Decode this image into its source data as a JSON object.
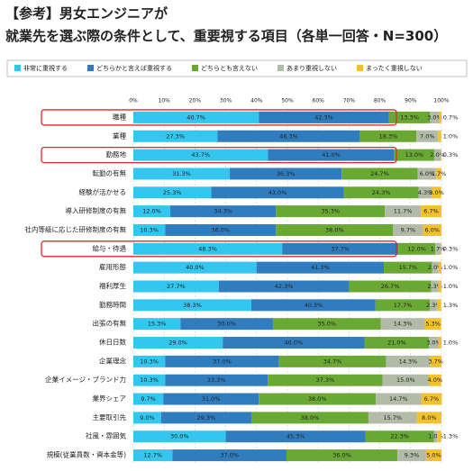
{
  "chart_data": {
    "type": "stacked-bar-horizontal",
    "title": [
      "【参考】男女エンジニアが",
      "就業先を選ぶ際の条件として、重要視する項目（各単一回答・N=300）"
    ],
    "categories": [
      "職種",
      "業種",
      "勤務地",
      "転勤の有無",
      "経験が活かせる",
      "導入研修制度の有無",
      "社内等級に応じた研修制度の有無",
      "給与・待遇",
      "雇用形態",
      "福利厚生",
      "勤務時間",
      "出張の有無",
      "休日日数",
      "企業理念",
      "企業イメージ・ブランド力",
      "業界シェア",
      "主要取引先",
      "社風・雰囲気",
      "規模(従業員数・資本金等)"
    ],
    "series": [
      {
        "name": "非常に重視する",
        "color": "#33c6ee",
        "values": [
          40.7,
          27.3,
          43.7,
          31.3,
          25.3,
          12.0,
          10.3,
          48.3,
          40.0,
          27.7,
          38.3,
          15.3,
          29.0,
          10.3,
          10.3,
          9.7,
          9.0,
          30.0,
          12.7
        ],
        "value_labels": [
          "40.7%",
          "27.3%",
          "43.7%",
          "31.3%",
          "25.3%",
          "12.0%",
          "10.3%",
          "48.3%",
          "40.0%",
          "27.7%",
          "38.3%",
          "15.3%",
          "29.0%",
          "10.3%",
          "10.3%",
          "9.7%",
          "9.0%",
          "30.0%",
          "12.7%"
        ]
      },
      {
        "name": "どちらかと言えば重視する",
        "color": "#2f7dbf",
        "values": [
          42.3,
          46.3,
          41.0,
          36.3,
          43.0,
          34.3,
          36.0,
          37.7,
          41.3,
          42.3,
          40.3,
          30.0,
          46.0,
          37.0,
          33.3,
          31.0,
          29.3,
          45.3,
          37.0
        ],
        "value_labels": [
          "42.3%",
          "46.3%",
          "41.0%",
          "36.3%",
          "43.0%",
          "34.3%",
          "36.0%",
          "37.7%",
          "41.3%",
          "42.3%",
          "40.3%",
          "30.0%",
          "46.0%",
          "37.0%",
          "33.3%",
          "31.0%",
          "29.3%",
          "45.3%",
          "37.0%"
        ]
      },
      {
        "name": "どちらとも言えない",
        "color": "#6aa834",
        "values": [
          13.3,
          18.3,
          13.0,
          24.7,
          24.3,
          35.3,
          38.0,
          12.0,
          15.7,
          26.7,
          17.7,
          35.0,
          21.0,
          34.7,
          37.3,
          38.0,
          38.0,
          22.3,
          36.0
        ],
        "value_labels": [
          "13.3%",
          "18.3%",
          "13.0%",
          "24.7%",
          "24.3%",
          "35.3%",
          "38.0%",
          "12.0%",
          "15.7%",
          "26.7%",
          "17.7%",
          "35.0%",
          "21.0%",
          "34.7%",
          "37.3%",
          "38.0%",
          "38.0%",
          "22.3%",
          "36.0%"
        ]
      },
      {
        "name": "あまり重視しない",
        "color": "#b2bba8",
        "values": [
          3.0,
          7.0,
          2.0,
          6.0,
          4.3,
          11.7,
          9.7,
          1.7,
          2.0,
          2.3,
          2.3,
          14.3,
          3.0,
          14.3,
          15.0,
          14.7,
          15.7,
          1.0,
          9.3
        ],
        "value_labels": [
          "3.0%",
          "7.0%",
          "2.0%",
          "6.0%",
          "4.3%",
          "11.7%",
          "9.7%",
          "1.7%",
          "2.0%",
          "2.3%",
          "2.3%",
          "14.3%",
          "3.0%",
          "14.3%",
          "15.0%",
          "14.7%",
          "15.7%",
          "1.0%",
          "9.3%"
        ]
      },
      {
        "name": "まったく重視しない",
        "color": "#f2c12e",
        "values": [
          0.7,
          1.0,
          0.3,
          1.7,
          3.0,
          6.7,
          6.0,
          0.3,
          1.0,
          1.0,
          1.3,
          5.3,
          1.0,
          3.7,
          4.0,
          6.7,
          8.0,
          1.3,
          5.0
        ],
        "value_labels": [
          "0.7%",
          "1.0%",
          "0.3%",
          "1.7%",
          "3.0%",
          "6.7%",
          "6.0%",
          "0.3%",
          "1.0%",
          "1.0%",
          "1.3%",
          "5.3%",
          "1.0%",
          "3.7%",
          "4.0%",
          "6.7%",
          "8.0%",
          "1.3%",
          "5.0%"
        ]
      }
    ],
    "xlim": [
      0,
      100
    ],
    "xticks": [
      {
        "value": 0,
        "label": "0%"
      },
      {
        "value": 10,
        "label": "10%"
      },
      {
        "value": 20,
        "label": "20%"
      },
      {
        "value": 30,
        "label": "30%"
      },
      {
        "value": 40,
        "label": "40%"
      },
      {
        "value": 50,
        "label": "50%"
      },
      {
        "value": 60,
        "label": "60%"
      },
      {
        "value": 70,
        "label": "70%"
      },
      {
        "value": 80,
        "label": "80%"
      },
      {
        "value": 90,
        "label": "90%"
      },
      {
        "value": 100,
        "label": "100%"
      }
    ],
    "grid": true,
    "legend": "top"
  }
}
